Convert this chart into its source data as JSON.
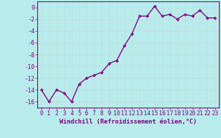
{
  "x": [
    0,
    1,
    2,
    3,
    4,
    5,
    6,
    7,
    8,
    9,
    10,
    11,
    12,
    13,
    14,
    15,
    16,
    17,
    18,
    19,
    20,
    21,
    22,
    23
  ],
  "y": [
    -14,
    -16,
    -14,
    -14.5,
    -16,
    -13,
    -12,
    -11.5,
    -11,
    -9.5,
    -9,
    -6.5,
    -4.5,
    -1.5,
    -1.5,
    0.2,
    -1.5,
    -1.2,
    -2,
    -1.2,
    -1.5,
    -0.5,
    -1.8,
    -1.8
  ],
  "line_color": "#800080",
  "marker": "D",
  "marker_size": 2,
  "bg_color": "#b8ecec",
  "grid_color": "#c8d8d8",
  "xlabel": "Windchill (Refroidissement éolien,°C)",
  "xlabel_color": "#800080",
  "tick_color": "#800080",
  "spine_color": "#800080",
  "ylim": [
    -17,
    1
  ],
  "yticks": [
    0,
    -2,
    -4,
    -6,
    -8,
    -10,
    -12,
    -14,
    -16
  ],
  "xticks": [
    0,
    1,
    2,
    3,
    4,
    5,
    6,
    7,
    8,
    9,
    10,
    11,
    12,
    13,
    14,
    15,
    16,
    17,
    18,
    19,
    20,
    21,
    22,
    23
  ],
  "xlabel_fontsize": 6.5,
  "tick_fontsize": 6,
  "line_width": 1.0
}
